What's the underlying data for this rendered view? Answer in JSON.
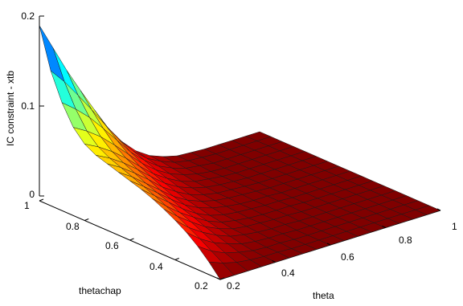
{
  "chart_data": {
    "type": "surface3d",
    "title": "",
    "xlabel": "theta",
    "ylabel": "thetachap",
    "zlabel": "IC constraint - xtb",
    "xlim": [
      0.2,
      1
    ],
    "ylim": [
      0.2,
      1
    ],
    "zlim": [
      0,
      0.2
    ],
    "x_ticks": [
      "0.2",
      "0.4",
      "0.6",
      "0.8",
      "1"
    ],
    "y_ticks": [
      "0.2",
      "0.4",
      "0.6",
      "0.8",
      "1"
    ],
    "z_ticks": [
      "0",
      "0.1",
      "0.2"
    ],
    "x_tick_values": [
      0.2,
      0.4,
      0.6,
      0.8,
      1.0
    ],
    "y_tick_values": [
      0.2,
      0.4,
      0.6,
      0.8,
      1.0
    ],
    "z_tick_values": [
      0,
      0.1,
      0.2
    ],
    "grid": false,
    "colormap": "jet",
    "colormap_colors": [
      "#00008f",
      "#0000ff",
      "#00ffff",
      "#ffff00",
      "#ff0000",
      "#800000"
    ],
    "mesh_color": "#1a1a1a",
    "surface": {
      "x": [
        0.2,
        0.25,
        0.3,
        0.35,
        0.4,
        0.45,
        0.5,
        0.55,
        0.6,
        0.65,
        0.7,
        0.75,
        0.8,
        0.85,
        0.9,
        0.95,
        1.0
      ],
      "y": [
        0.2,
        0.25,
        0.3,
        0.35,
        0.4,
        0.45,
        0.5,
        0.55,
        0.6,
        0.65,
        0.7,
        0.75,
        0.8,
        0.85,
        0.9,
        0.95,
        1.0
      ],
      "z_rows_by_y": [
        [
          0.0,
          0.0,
          0.0,
          0.0,
          0.0,
          0.0,
          0.0,
          0.0,
          0.0,
          0.0,
          0.0,
          0.0,
          0.0,
          0.0,
          0.0,
          0.0,
          0.0
        ],
        [
          0.014,
          0.008,
          0.004,
          0.002,
          0.001,
          0.001,
          0.0,
          0.0,
          0.0,
          0.0,
          0.0,
          0.0,
          0.0,
          0.0,
          0.0,
          0.0,
          0.0
        ],
        [
          0.026,
          0.016,
          0.009,
          0.005,
          0.002,
          0.001,
          0.001,
          0.0,
          0.0,
          0.0,
          0.0,
          0.0,
          0.0,
          0.0,
          0.0,
          0.0,
          0.0
        ],
        [
          0.036,
          0.024,
          0.015,
          0.009,
          0.004,
          0.002,
          0.001,
          0.001,
          0.0,
          0.0,
          0.0,
          0.0,
          0.0,
          0.0,
          0.0,
          0.0,
          0.0
        ],
        [
          0.044,
          0.031,
          0.021,
          0.013,
          0.007,
          0.004,
          0.002,
          0.001,
          0.001,
          0.0,
          0.0,
          0.0,
          0.0,
          0.0,
          0.0,
          0.0,
          0.0
        ],
        [
          0.051,
          0.038,
          0.027,
          0.017,
          0.01,
          0.005,
          0.003,
          0.002,
          0.001,
          0.001,
          0.0,
          0.0,
          0.0,
          0.0,
          0.0,
          0.0,
          0.0
        ],
        [
          0.057,
          0.044,
          0.032,
          0.022,
          0.013,
          0.007,
          0.004,
          0.002,
          0.001,
          0.001,
          0.001,
          0.0,
          0.0,
          0.0,
          0.0,
          0.0,
          0.0
        ],
        [
          0.062,
          0.05,
          0.038,
          0.026,
          0.016,
          0.009,
          0.005,
          0.003,
          0.002,
          0.001,
          0.001,
          0.0,
          0.0,
          0.0,
          0.0,
          0.0,
          0.0
        ],
        [
          0.066,
          0.055,
          0.043,
          0.031,
          0.02,
          0.012,
          0.007,
          0.004,
          0.002,
          0.001,
          0.001,
          0.0,
          0.0,
          0.0,
          0.0,
          0.0,
          0.0
        ],
        [
          0.07,
          0.06,
          0.048,
          0.036,
          0.024,
          0.015,
          0.009,
          0.005,
          0.003,
          0.002,
          0.001,
          0.0,
          0.0,
          0.0,
          0.0,
          0.0,
          0.0
        ],
        [
          0.074,
          0.065,
          0.054,
          0.042,
          0.029,
          0.019,
          0.011,
          0.006,
          0.003,
          0.002,
          0.001,
          0.0,
          0.0,
          0.0,
          0.0,
          0.0,
          0.0
        ],
        [
          0.078,
          0.07,
          0.06,
          0.048,
          0.035,
          0.023,
          0.014,
          0.008,
          0.004,
          0.002,
          0.001,
          0.0,
          0.0,
          0.0,
          0.0,
          0.0,
          0.0
        ],
        [
          0.085,
          0.077,
          0.067,
          0.055,
          0.041,
          0.028,
          0.018,
          0.01,
          0.005,
          0.003,
          0.001,
          0.0,
          0.0,
          0.0,
          0.0,
          0.0,
          0.0
        ],
        [
          0.098,
          0.089,
          0.078,
          0.064,
          0.049,
          0.034,
          0.022,
          0.013,
          0.007,
          0.003,
          0.001,
          0.0,
          0.0,
          0.0,
          0.0,
          0.0,
          0.0
        ],
        [
          0.12,
          0.108,
          0.094,
          0.077,
          0.059,
          0.041,
          0.027,
          0.016,
          0.009,
          0.004,
          0.002,
          0.0,
          0.0,
          0.0,
          0.0,
          0.0,
          0.0
        ],
        [
          0.15,
          0.133,
          0.113,
          0.092,
          0.07,
          0.049,
          0.032,
          0.019,
          0.011,
          0.005,
          0.002,
          0.001,
          0.0,
          0.0,
          0.0,
          0.0,
          0.0
        ],
        [
          0.195,
          0.165,
          0.135,
          0.108,
          0.082,
          0.057,
          0.037,
          0.022,
          0.012,
          0.006,
          0.002,
          0.001,
          0.0,
          0.0,
          0.0,
          0.0,
          0.0
        ]
      ]
    }
  }
}
